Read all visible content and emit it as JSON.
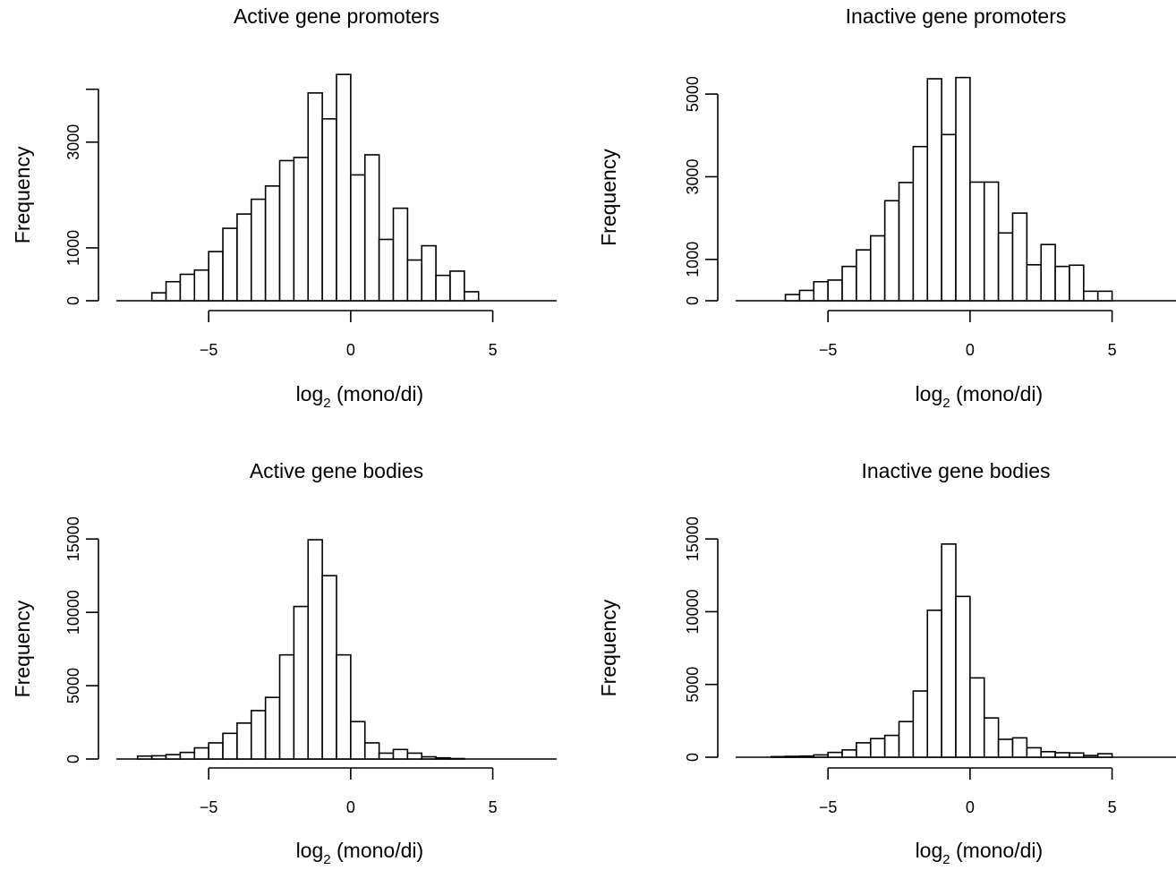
{
  "chart_data": [
    {
      "type": "histogram",
      "title": "Active gene promoters",
      "xlabel_main": "log",
      "xlabel_sub": "2",
      "xlabel_rest": " (mono/di)",
      "ylabel": "Frequency",
      "xlim": [
        -8.25,
        7.25
      ],
      "ylim": [
        0,
        4300
      ],
      "xticks": [
        -5,
        0,
        5
      ],
      "xtick_labels": [
        "−5",
        "0",
        "5"
      ],
      "yticks": [
        0,
        1000,
        3000
      ],
      "ytick_labels": [
        "0",
        "1000",
        "3000"
      ],
      "ytick_axis_max": 4000,
      "bin_width": 0.5,
      "bin_starts": [
        -7,
        -6.5,
        -6,
        -5.5,
        -5,
        -4.5,
        -4,
        -3.5,
        -3,
        -2.5,
        -2,
        -1.5,
        -1,
        -0.5,
        0,
        0.5,
        1,
        1.5,
        2,
        2.5,
        3,
        3.5,
        4
      ],
      "values": [
        150,
        360,
        500,
        580,
        930,
        1370,
        1640,
        1920,
        2170,
        2650,
        2710,
        3930,
        3440,
        4280,
        2380,
        2760,
        1160,
        1750,
        770,
        1040,
        480,
        560,
        170
      ]
    },
    {
      "type": "histogram",
      "title": "Inactive gene promoters",
      "xlabel_main": "log",
      "xlabel_sub": "2",
      "xlabel_rest": " (mono/di)",
      "ylabel": "Frequency",
      "xlim": [
        -8.25,
        7.25
      ],
      "ylim": [
        0,
        5500
      ],
      "xticks": [
        -5,
        0,
        5
      ],
      "xtick_labels": [
        "−5",
        "0",
        "5"
      ],
      "yticks": [
        0,
        1000,
        3000,
        5000
      ],
      "ytick_labels": [
        "0",
        "1000",
        "3000",
        "5000"
      ],
      "ytick_axis_max": 5000,
      "bin_width": 0.5,
      "bin_starts": [
        -6.5,
        -6,
        -5.5,
        -5,
        -4.5,
        -4,
        -3.5,
        -3,
        -2.5,
        -2,
        -1.5,
        -1,
        -0.5,
        0,
        0.5,
        1,
        1.5,
        2,
        2.5,
        3,
        3.5,
        4,
        4.5
      ],
      "values": [
        150,
        250,
        460,
        500,
        830,
        1230,
        1570,
        2420,
        2860,
        3730,
        5370,
        4020,
        5400,
        2870,
        2870,
        1640,
        2120,
        870,
        1360,
        830,
        860,
        230,
        230
      ]
    },
    {
      "type": "histogram",
      "title": "Active gene bodies",
      "xlabel_main": "log",
      "xlabel_sub": "2",
      "xlabel_rest": " (mono/di)",
      "ylabel": "Frequency",
      "xlim": [
        -8.25,
        7.25
      ],
      "ylim": [
        0,
        15500
      ],
      "xticks": [
        -5,
        0,
        5
      ],
      "xtick_labels": [
        "−5",
        "0",
        "5"
      ],
      "yticks": [
        0,
        5000,
        10000,
        15000
      ],
      "ytick_labels": [
        "0",
        "5000",
        "10000",
        "15000"
      ],
      "ytick_axis_max": 15000,
      "bin_width": 0.5,
      "bin_starts": [
        -7.5,
        -7,
        -6.5,
        -6,
        -5.5,
        -5,
        -4.5,
        -4,
        -3.5,
        -3,
        -2.5,
        -2,
        -1.5,
        -1,
        -0.5,
        0,
        0.5,
        1,
        1.5,
        2,
        2.5,
        3,
        3.5
      ],
      "values": [
        200,
        220,
        300,
        450,
        760,
        1100,
        1750,
        2450,
        3300,
        4200,
        7100,
        10400,
        14950,
        12500,
        7100,
        2550,
        1100,
        400,
        650,
        400,
        150,
        80,
        30
      ]
    },
    {
      "type": "histogram",
      "title": "Inactive gene bodies",
      "xlabel_main": "log",
      "xlabel_sub": "2",
      "xlabel_rest": " (mono/di)",
      "ylabel": "Frequency",
      "xlim": [
        -8.25,
        7.25
      ],
      "ylim": [
        0,
        15500
      ],
      "xticks": [
        -5,
        0,
        5
      ],
      "xtick_labels": [
        "−5",
        "0",
        "5"
      ],
      "yticks": [
        0,
        5000,
        10000,
        15000
      ],
      "ytick_labels": [
        "0",
        "5000",
        "10000",
        "15000"
      ],
      "ytick_axis_max": 15000,
      "bin_width": 0.5,
      "bin_starts": [
        -7,
        -6.5,
        -6,
        -5.5,
        -5,
        -4.5,
        -4,
        -3.5,
        -3,
        -2.5,
        -2,
        -1.5,
        -1,
        -0.5,
        0,
        0.5,
        1,
        1.5,
        2,
        2.5,
        3,
        3.5,
        4,
        4.5
      ],
      "values": [
        40,
        60,
        80,
        160,
        330,
        500,
        990,
        1280,
        1500,
        2450,
        4550,
        10100,
        14650,
        11050,
        5450,
        2700,
        1230,
        1330,
        650,
        380,
        310,
        290,
        120,
        240
      ]
    }
  ]
}
